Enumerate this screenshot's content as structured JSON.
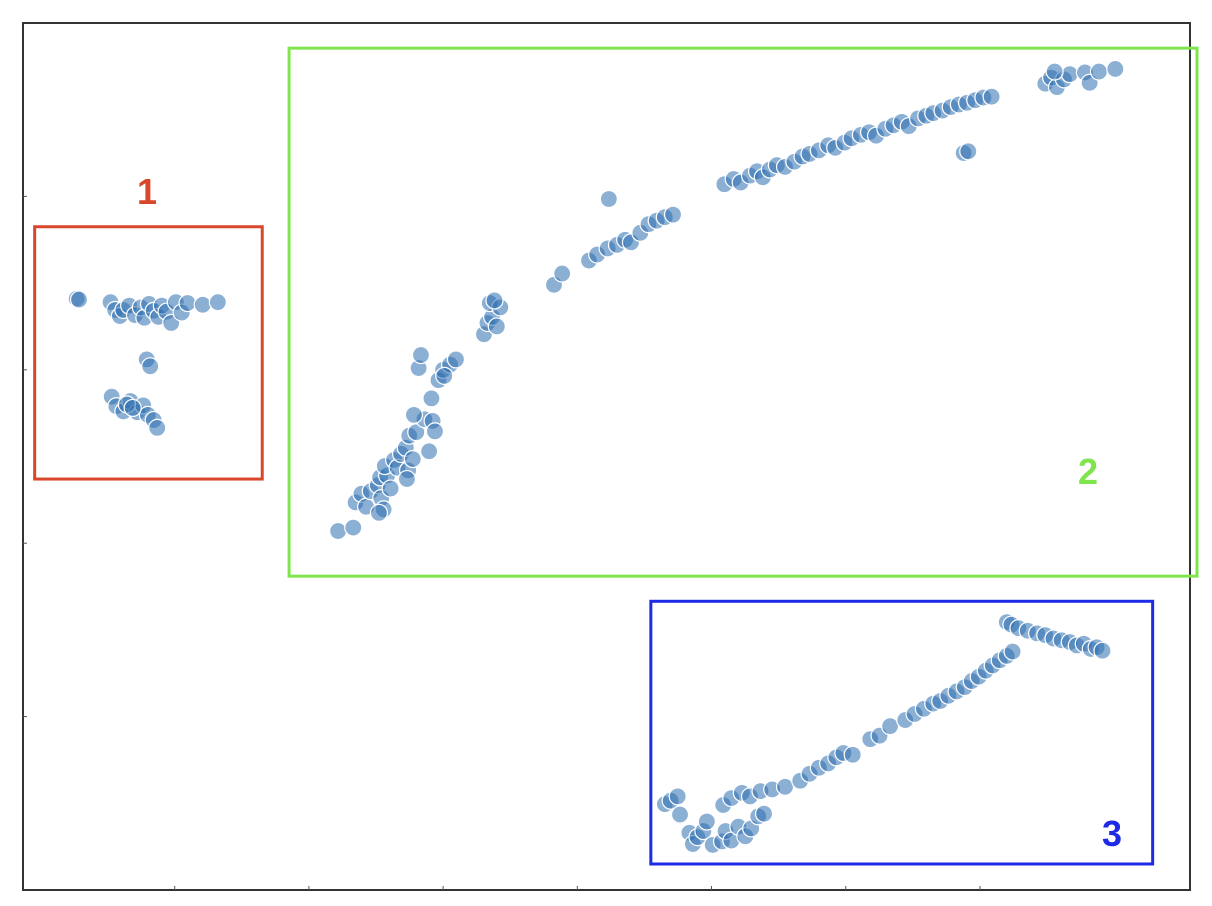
{
  "chart_data": {
    "type": "scatter",
    "title": "",
    "xlabel": "",
    "ylabel": "",
    "xlim": [
      0,
      100
    ],
    "ylim": [
      0,
      100
    ],
    "grid": false,
    "marker_color": "#2e6fb0",
    "marker_opacity": 0.55,
    "clusters": [
      {
        "label": "1",
        "color": "#d9472a",
        "box": {
          "x0": 1.0,
          "x1": 20.5,
          "y0": 47.4,
          "y1": 76.5
        },
        "points": [
          [
            4.6,
            68.2
          ],
          [
            4.8,
            68.1
          ],
          [
            7.5,
            67.8
          ],
          [
            7.9,
            66.9
          ],
          [
            8.3,
            66.2
          ],
          [
            8.6,
            66.9
          ],
          [
            9.1,
            67.4
          ],
          [
            9.6,
            66.3
          ],
          [
            10.1,
            67.2
          ],
          [
            10.4,
            66.0
          ],
          [
            10.8,
            67.6
          ],
          [
            11.2,
            66.8
          ],
          [
            11.6,
            66.1
          ],
          [
            11.9,
            67.4
          ],
          [
            12.3,
            66.7
          ],
          [
            12.7,
            65.4
          ],
          [
            13.1,
            67.8
          ],
          [
            13.6,
            66.6
          ],
          [
            14.1,
            67.7
          ],
          [
            15.4,
            67.5
          ],
          [
            16.7,
            67.8
          ],
          [
            10.6,
            61.2
          ],
          [
            10.9,
            60.4
          ],
          [
            7.6,
            56.9
          ],
          [
            8.0,
            55.8
          ],
          [
            8.6,
            55.2
          ],
          [
            9.2,
            56.4
          ],
          [
            9.8,
            55.1
          ],
          [
            10.3,
            55.9
          ],
          [
            10.7,
            54.8
          ],
          [
            11.2,
            54.2
          ],
          [
            11.5,
            53.3
          ],
          [
            8.9,
            56.0
          ],
          [
            9.4,
            55.6
          ]
        ]
      },
      {
        "label": "2",
        "color": "#7fe44e",
        "box": {
          "x0": 22.8,
          "x1": 100.6,
          "y0": 36.2,
          "y1": 97.1
        },
        "points": [
          [
            27.0,
            41.4
          ],
          [
            28.3,
            41.8
          ],
          [
            28.5,
            44.7
          ],
          [
            29.0,
            45.7
          ],
          [
            29.4,
            44.2
          ],
          [
            29.8,
            46.0
          ],
          [
            30.4,
            46.7
          ],
          [
            30.7,
            45.2
          ],
          [
            30.9,
            43.9
          ],
          [
            30.6,
            47.6
          ],
          [
            31.2,
            47.8
          ],
          [
            31.0,
            48.9
          ],
          [
            30.5,
            43.5
          ],
          [
            31.8,
            49.6
          ],
          [
            31.5,
            46.3
          ],
          [
            32.1,
            48.7
          ],
          [
            32.4,
            50.3
          ],
          [
            32.8,
            51.0
          ],
          [
            33.1,
            52.4
          ],
          [
            33.0,
            48.4
          ],
          [
            33.7,
            52.8
          ],
          [
            33.4,
            49.7
          ],
          [
            32.9,
            47.4
          ],
          [
            34.4,
            54.3
          ],
          [
            33.5,
            54.8
          ],
          [
            35.0,
            56.7
          ],
          [
            35.1,
            54.1
          ],
          [
            35.3,
            52.9
          ],
          [
            34.8,
            50.6
          ],
          [
            35.6,
            58.8
          ],
          [
            36.0,
            60.0
          ],
          [
            36.6,
            60.6
          ],
          [
            36.1,
            59.3
          ],
          [
            37.1,
            61.2
          ],
          [
            33.9,
            60.2
          ],
          [
            34.1,
            61.7
          ],
          [
            39.5,
            64.1
          ],
          [
            39.8,
            65.4
          ],
          [
            40.2,
            66.1
          ],
          [
            40.0,
            67.7
          ],
          [
            40.6,
            65.0
          ],
          [
            40.9,
            67.2
          ],
          [
            40.4,
            68.0
          ],
          [
            45.5,
            69.8
          ],
          [
            46.2,
            71.1
          ],
          [
            48.5,
            72.6
          ],
          [
            49.2,
            73.3
          ],
          [
            50.1,
            74.0
          ],
          [
            50.9,
            74.4
          ],
          [
            51.6,
            75.0
          ],
          [
            52.1,
            74.7
          ],
          [
            52.9,
            75.8
          ],
          [
            53.6,
            76.8
          ],
          [
            54.3,
            77.2
          ],
          [
            55.0,
            77.6
          ],
          [
            55.7,
            77.9
          ],
          [
            50.2,
            79.7
          ],
          [
            60.1,
            81.4
          ],
          [
            60.9,
            82.0
          ],
          [
            61.5,
            81.6
          ],
          [
            62.3,
            82.4
          ],
          [
            62.9,
            82.9
          ],
          [
            63.4,
            82.2
          ],
          [
            64.0,
            83.1
          ],
          [
            64.6,
            83.6
          ],
          [
            65.3,
            83.4
          ],
          [
            66.1,
            84.0
          ],
          [
            66.8,
            84.6
          ],
          [
            67.4,
            84.9
          ],
          [
            68.2,
            85.3
          ],
          [
            69.0,
            85.9
          ],
          [
            69.6,
            85.6
          ],
          [
            70.4,
            86.2
          ],
          [
            71.0,
            86.7
          ],
          [
            71.8,
            87.1
          ],
          [
            72.5,
            87.4
          ],
          [
            73.1,
            87.0
          ],
          [
            73.9,
            87.8
          ],
          [
            74.6,
            88.2
          ],
          [
            75.3,
            88.6
          ],
          [
            75.9,
            88.1
          ],
          [
            76.7,
            89.0
          ],
          [
            77.4,
            89.3
          ],
          [
            78.0,
            89.6
          ],
          [
            78.8,
            89.9
          ],
          [
            79.5,
            90.3
          ],
          [
            80.2,
            90.6
          ],
          [
            80.9,
            90.8
          ],
          [
            81.6,
            91.1
          ],
          [
            82.3,
            91.4
          ],
          [
            83.0,
            91.5
          ],
          [
            80.6,
            85.0
          ],
          [
            81.0,
            85.2
          ],
          [
            87.6,
            93.0
          ],
          [
            88.1,
            93.7
          ],
          [
            88.6,
            92.6
          ],
          [
            89.2,
            93.5
          ],
          [
            89.7,
            94.1
          ],
          [
            88.4,
            94.4
          ],
          [
            91.0,
            94.3
          ],
          [
            91.4,
            93.1
          ],
          [
            92.2,
            94.4
          ],
          [
            93.6,
            94.7
          ]
        ]
      },
      {
        "label": "3",
        "color": "#1d2ae6",
        "box": {
          "x0": 53.8,
          "x1": 96.8,
          "y0": 3.0,
          "y1": 33.3
        },
        "points": [
          [
            55.0,
            9.9
          ],
          [
            55.5,
            10.3
          ],
          [
            56.1,
            10.8
          ],
          [
            56.3,
            8.7
          ],
          [
            57.1,
            6.6
          ],
          [
            57.4,
            5.3
          ],
          [
            57.8,
            6.1
          ],
          [
            58.3,
            6.8
          ],
          [
            58.6,
            7.9
          ],
          [
            59.1,
            5.2
          ],
          [
            59.9,
            5.6
          ],
          [
            60.2,
            6.8
          ],
          [
            60.7,
            5.7
          ],
          [
            61.3,
            7.3
          ],
          [
            61.9,
            6.2
          ],
          [
            62.4,
            7.1
          ],
          [
            63.0,
            8.5
          ],
          [
            63.5,
            8.8
          ],
          [
            60.0,
            9.8
          ],
          [
            60.7,
            10.6
          ],
          [
            61.6,
            11.2
          ],
          [
            62.3,
            10.8
          ],
          [
            63.2,
            11.4
          ],
          [
            64.2,
            11.6
          ],
          [
            65.3,
            11.9
          ],
          [
            66.6,
            12.6
          ],
          [
            67.4,
            13.4
          ],
          [
            68.2,
            14.1
          ],
          [
            69.0,
            14.6
          ],
          [
            69.7,
            15.3
          ],
          [
            70.3,
            15.8
          ],
          [
            71.1,
            15.6
          ],
          [
            72.6,
            17.4
          ],
          [
            73.4,
            17.8
          ],
          [
            74.3,
            18.9
          ],
          [
            75.6,
            19.6
          ],
          [
            76.4,
            20.3
          ],
          [
            77.2,
            20.9
          ],
          [
            78.0,
            21.5
          ],
          [
            78.6,
            21.8
          ],
          [
            79.3,
            22.4
          ],
          [
            80.0,
            22.9
          ],
          [
            80.7,
            23.4
          ],
          [
            81.3,
            24.1
          ],
          [
            81.9,
            24.6
          ],
          [
            82.5,
            25.3
          ],
          [
            83.1,
            25.9
          ],
          [
            83.7,
            26.5
          ],
          [
            84.3,
            27.0
          ],
          [
            84.8,
            27.5
          ],
          [
            84.3,
            30.9
          ],
          [
            84.7,
            30.6
          ],
          [
            85.3,
            30.2
          ],
          [
            86.1,
            29.9
          ],
          [
            86.9,
            29.6
          ],
          [
            87.6,
            29.4
          ],
          [
            88.3,
            29.0
          ],
          [
            89.0,
            28.8
          ],
          [
            89.7,
            28.6
          ],
          [
            90.3,
            28.2
          ],
          [
            90.9,
            28.4
          ],
          [
            91.5,
            27.8
          ],
          [
            92.0,
            28.0
          ],
          [
            92.5,
            27.6
          ]
        ]
      }
    ]
  }
}
